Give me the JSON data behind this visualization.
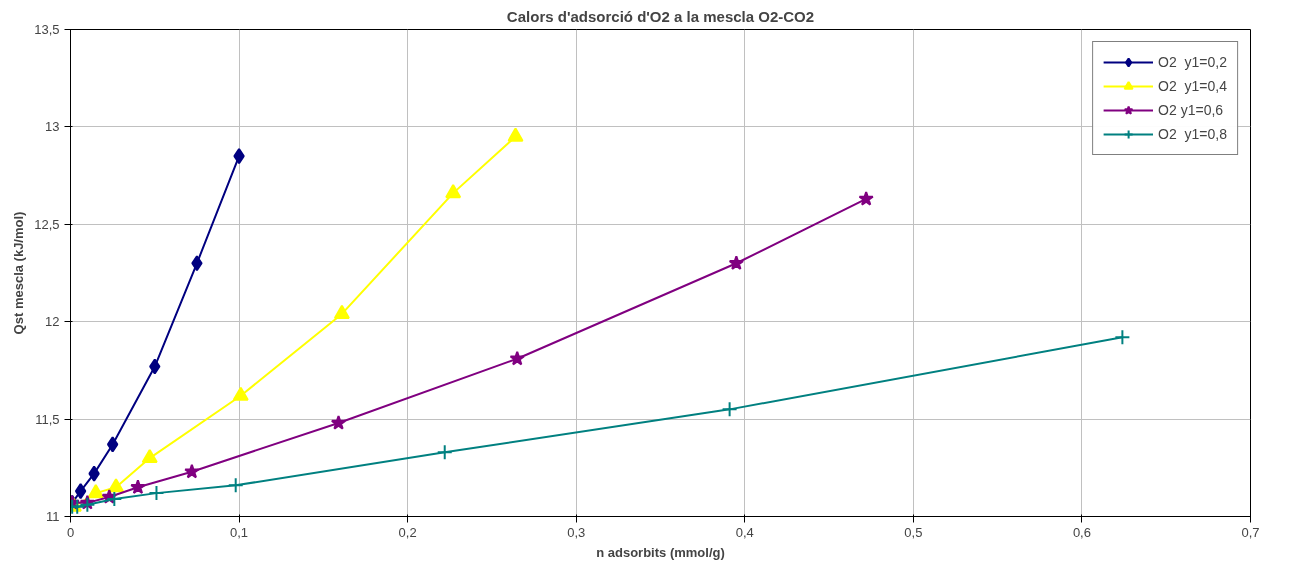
{
  "chart_data": {
    "type": "line",
    "title": "Calors d'adsorció d'O2 a la mescla O2-CO2",
    "xlabel": "n adsorbits (mmol/g)",
    "ylabel": "Qst mescla (kJ/mol)",
    "xlim": [
      0,
      0.7
    ],
    "ylim": [
      11,
      13.5
    ],
    "xticks": [
      0,
      {
        "value": 0.1,
        "label": "0,1"
      },
      {
        "value": 0.2,
        "label": "0,2"
      },
      {
        "value": 0.3,
        "label": "0,3"
      },
      {
        "value": 0.4,
        "label": "0,4"
      },
      {
        "value": 0.5,
        "label": "0,5"
      },
      {
        "value": 0.6,
        "label": "0,6"
      },
      {
        "value": 0.7,
        "label": "0,7"
      }
    ],
    "yticks": [
      11,
      {
        "value": 11.5,
        "label": "11,5"
      },
      12,
      {
        "value": 12.5,
        "label": "12,5"
      },
      13,
      {
        "value": 13.5,
        "label": "13,5"
      }
    ],
    "grid": true,
    "legend": "top right",
    "line_style": "solid",
    "series": [
      {
        "name": "O2  y1=0,2",
        "color": "#000080",
        "marker": "diamond",
        "x": [
          0.001,
          0.006,
          0.014,
          0.025,
          0.05,
          0.075,
          0.1
        ],
        "values": [
          11.07,
          11.13,
          11.22,
          11.37,
          11.77,
          12.3,
          12.85
        ]
      },
      {
        "name": "O2  y1=0,4",
        "color": "#ffff00",
        "marker": "triangle",
        "x": [
          0.002,
          0.015,
          0.027,
          0.047,
          0.101,
          0.161,
          0.227,
          0.264
        ],
        "values": [
          11.05,
          11.12,
          11.15,
          11.3,
          11.62,
          12.04,
          12.66,
          12.95
        ]
      },
      {
        "name": "O2 y1=0,6",
        "color": "#800080",
        "marker": "star",
        "x": [
          0.001,
          0.01,
          0.023,
          0.04,
          0.072,
          0.159,
          0.265,
          0.395,
          0.472
        ],
        "values": [
          11.07,
          11.07,
          11.1,
          11.15,
          11.23,
          11.48,
          11.81,
          12.3,
          12.63
        ]
      },
      {
        "name": "O2  y1=0,8",
        "color": "#008080",
        "marker": "cross",
        "x": [
          0.001,
          0.004,
          0.01,
          0.026,
          0.051,
          0.098,
          0.222,
          0.391,
          0.624
        ],
        "values": [
          11.05,
          11.05,
          11.06,
          11.09,
          11.12,
          11.16,
          11.33,
          11.55,
          11.92
        ]
      }
    ]
  }
}
